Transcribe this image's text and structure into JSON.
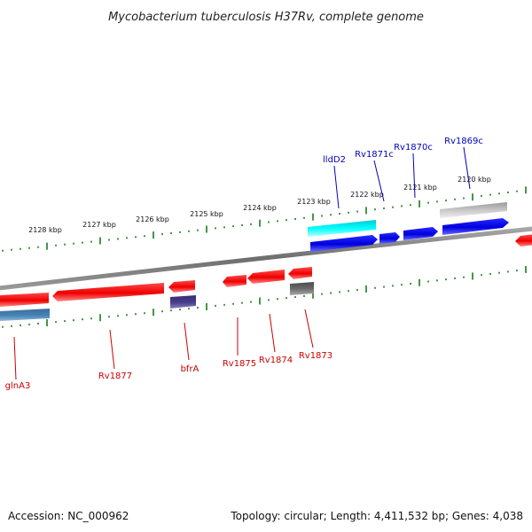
{
  "title": "Mycobacterium tuberculosis H37Rv, complete genome",
  "footer": {
    "accession": "Accession: NC_000962",
    "summary": "Topology: circular; Length: 4,411,532 bp; Genes: 4,038"
  },
  "colors": {
    "forward_label": "#0000bb",
    "reverse_label": "#cc0000",
    "tick": "#1a7a1a",
    "backbone": "#7a7a7a",
    "red": "#ff0000",
    "blue": "#0000ee",
    "cyan": "#00e5ee",
    "gray": "#bdbdbd",
    "darkgray": "#6a6a6a",
    "steelblue": "#4682b4",
    "slate": "#483d8b"
  },
  "ticks_outer": [
    {
      "label": "2128 kbp"
    },
    {
      "label": "2127 kbp"
    },
    {
      "label": "2126 kbp"
    },
    {
      "label": "2125 kbp"
    },
    {
      "label": "2124 kbp"
    },
    {
      "label": "2123 kbp"
    },
    {
      "label": "2122 kbp"
    },
    {
      "label": "2121 kbp"
    },
    {
      "label": "2120 kbp"
    }
  ],
  "gene_labels_forward": [
    {
      "name": "lldD2"
    },
    {
      "name": "Rv1871c"
    },
    {
      "name": "Rv1870c"
    },
    {
      "name": "Rv1869c"
    }
  ],
  "gene_labels_reverse": [
    {
      "name": "glnA3"
    },
    {
      "name": "Rv1877"
    },
    {
      "name": "bfrA"
    },
    {
      "name": "Rv1875"
    },
    {
      "name": "Rv1874"
    },
    {
      "name": "Rv1873"
    }
  ]
}
